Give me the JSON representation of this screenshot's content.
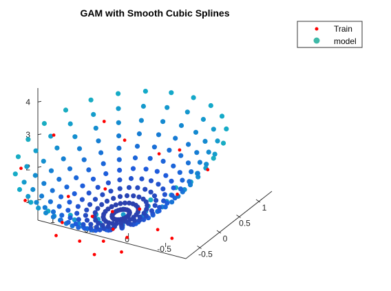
{
  "chart_data": {
    "type": "scatter",
    "title": "GAM with Smooth Cubic Splines",
    "legend": {
      "placement": "top-right",
      "entries": [
        "Train",
        "model"
      ]
    },
    "axes": {
      "x": {
        "ticks": [
          "1",
          "0.5",
          "0",
          "-0.5"
        ],
        "range": [
          -0.75,
          1.3
        ]
      },
      "y": {
        "ticks": [
          "-0.5",
          "0",
          "0.5",
          "1"
        ],
        "range": [
          -0.75,
          1.25
        ]
      },
      "z": {
        "ticks": [
          "1",
          "2",
          "3",
          "4"
        ],
        "range": [
          0.3,
          4.2
        ]
      }
    },
    "model_surface": "z = 0.28 + 1.7*x^2 + 1.55*y^2 (approx.)",
    "series": [
      {
        "name": "Train",
        "color": "#ff0000",
        "points": [
          [
            -0.55,
            0.1,
            0.6
          ],
          [
            -0.3,
            -0.4,
            0.8
          ],
          [
            -0.2,
            0.55,
            1.0
          ],
          [
            0.0,
            0.0,
            0.4
          ],
          [
            0.15,
            -0.2,
            0.5
          ],
          [
            0.3,
            0.8,
            1.5
          ],
          [
            0.45,
            -0.6,
            1.1
          ],
          [
            0.6,
            0.3,
            1.0
          ],
          [
            0.75,
            -0.1,
            1.3
          ],
          [
            0.9,
            0.6,
            2.4
          ],
          [
            1.05,
            -0.5,
            2.6
          ],
          [
            1.15,
            0.1,
            2.6
          ],
          [
            0.5,
            0.0,
            0.7
          ],
          [
            0.2,
            0.4,
            0.5
          ],
          [
            -0.1,
            -0.6,
            0.9
          ],
          [
            0.35,
            -0.35,
            0.6
          ],
          [
            0.7,
            0.7,
            1.8
          ],
          [
            0.1,
            0.9,
            1.6
          ],
          [
            -0.4,
            0.8,
            1.5
          ],
          [
            0.8,
            -0.7,
            2.1
          ],
          [
            0.4,
            0.2,
            0.6
          ],
          [
            0.6,
            -0.35,
            1.0
          ],
          [
            0.25,
            0.05,
            0.4
          ],
          [
            -0.25,
            0.2,
            0.5
          ]
        ]
      },
      {
        "name": "model",
        "color": "#3fb9a8"
      }
    ]
  }
}
